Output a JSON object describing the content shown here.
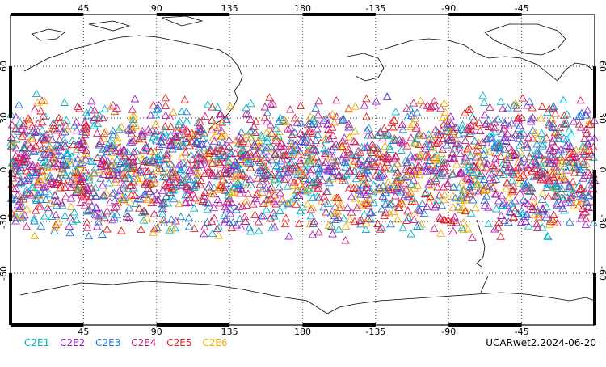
{
  "map": {
    "product": "UCARwet2.2024-06-20",
    "lon_ticks": [
      "45",
      "90",
      "135",
      "180",
      "-135",
      "-90",
      "-45"
    ],
    "lat_ticks": [
      "60",
      "30",
      "0",
      "-30",
      "-60"
    ],
    "lon_tick_values": [
      45,
      90,
      135,
      180,
      225,
      270,
      315
    ],
    "lat_tick_values": [
      60,
      30,
      0,
      -30,
      -60
    ],
    "lon_range": [
      0,
      360
    ],
    "lat_range": [
      -90,
      90
    ],
    "grid": true,
    "marker": "triangle-open",
    "observation_lat_band": [
      -42,
      45
    ],
    "legend": [
      {
        "label": "C2E1",
        "color": "#00b4c8"
      },
      {
        "label": "C2E2",
        "color": "#a020c8"
      },
      {
        "label": "C2E3",
        "color": "#1e78dc"
      },
      {
        "label": "C2E4",
        "color": "#c81e78"
      },
      {
        "label": "C2E5",
        "color": "#e61e1e"
      },
      {
        "label": "C2E6",
        "color": "#f5aa00"
      }
    ]
  }
}
